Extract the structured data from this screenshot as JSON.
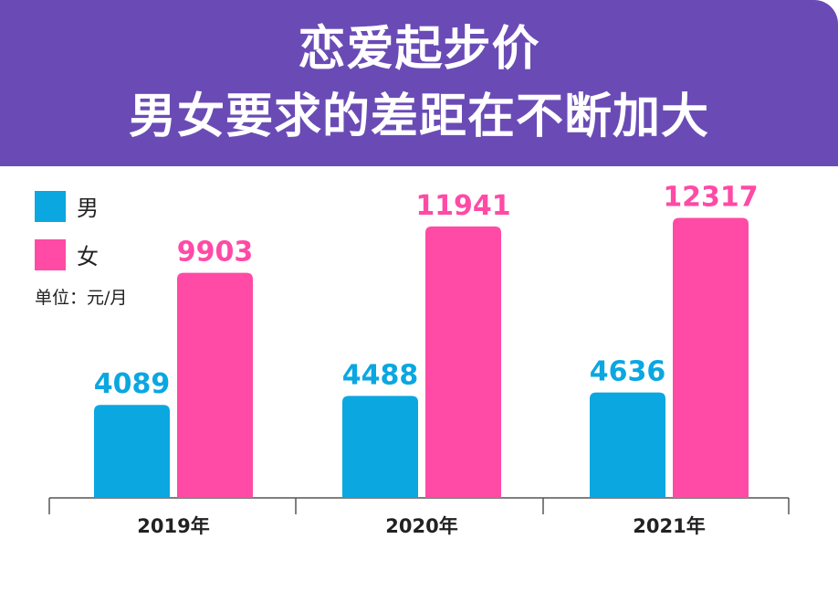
{
  "title": {
    "line1": "恋爱起步价",
    "line2": "男女要求的差距在不断加大"
  },
  "colors": {
    "header_bg": "#6a4bb5",
    "male": "#0aa7e1",
    "female": "#ff4aa6"
  },
  "legend": {
    "male": "男",
    "female": "女"
  },
  "unit_label": "单位：元/月",
  "chart_data": {
    "type": "bar",
    "title": "恋爱起步价",
    "xlabel": "",
    "ylabel": "元/月",
    "ylim": [
      0,
      13000
    ],
    "categories": [
      "2019年",
      "2020年",
      "2021年"
    ],
    "series": [
      {
        "name": "男",
        "values": [
          4089,
          4488,
          4636
        ]
      },
      {
        "name": "女",
        "values": [
          9903,
          11941,
          12317
        ]
      }
    ],
    "legend_position": "top-left",
    "grid": false
  }
}
